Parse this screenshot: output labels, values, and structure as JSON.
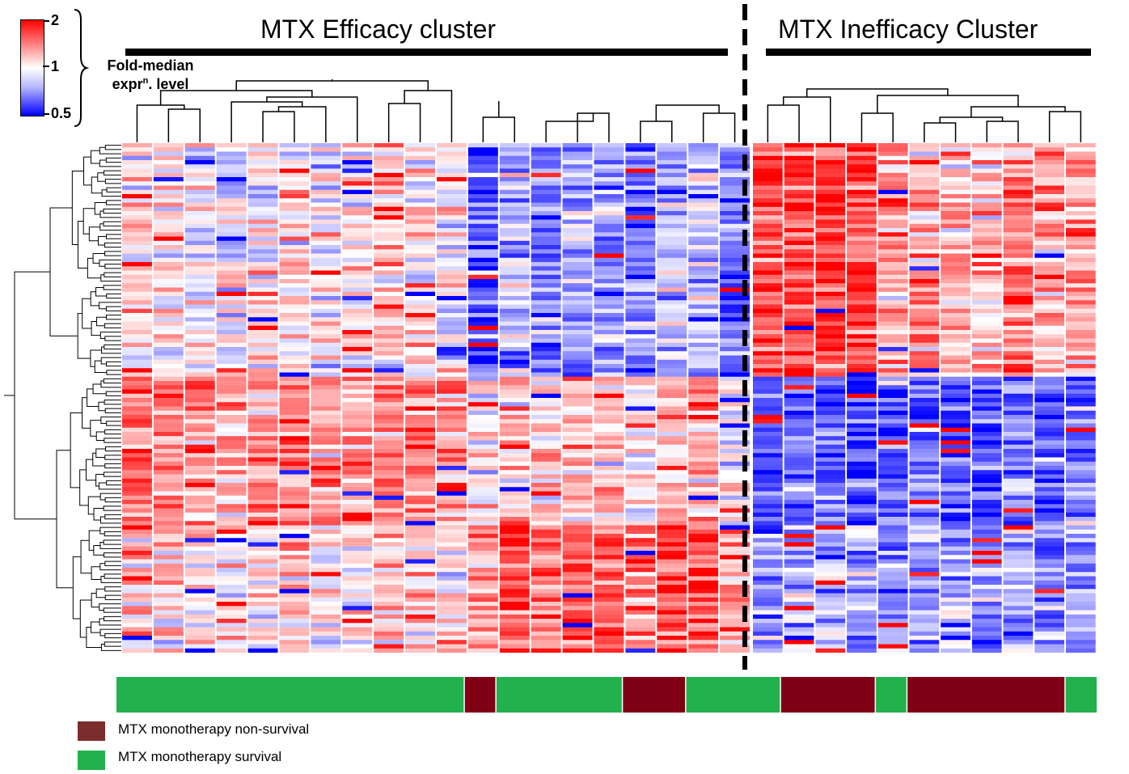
{
  "header": {
    "efficacy_title": "MTX Efficacy cluster",
    "inefficacy_title": "MTX Inefficacy Cluster"
  },
  "color_scale": {
    "tick_max": "2",
    "tick_mid": "1",
    "tick_min": "0.5",
    "label_line1": "Fold-median",
    "label_line2_main": "expr",
    "label_line2_sup": "n",
    "label_line2_rest": ". level",
    "colors": {
      "high": "#ff0000",
      "mid": "#ffffff",
      "low": "#0000ff"
    }
  },
  "legend": {
    "items": [
      {
        "label": "MTX monotherapy non-survival",
        "color": "#7b2c2c"
      },
      {
        "label": "MTX monotherapy survival",
        "color": "#22b14c"
      }
    ]
  },
  "chart_data": {
    "type": "heatmap",
    "n_columns": 31,
    "efficacy_columns": 20,
    "inefficacy_columns": 11,
    "value_range": [
      0.5,
      2
    ],
    "value_scale": "log2",
    "survival_bar": [
      {
        "status": "survival",
        "color": "#22b14c",
        "count": 11
      },
      {
        "status": "non-survival",
        "color": "#800015",
        "count": 1
      },
      {
        "status": "survival",
        "color": "#22b14c",
        "count": 4
      },
      {
        "status": "non-survival",
        "color": "#800015",
        "count": 2
      },
      {
        "status": "survival",
        "color": "#22b14c",
        "count": 3
      },
      {
        "status": "non-survival",
        "color": "#800015",
        "count": 3
      },
      {
        "status": "survival",
        "color": "#22b14c",
        "count": 1
      },
      {
        "status": "non-survival",
        "color": "#800015",
        "count": 5
      },
      {
        "status": "survival",
        "color": "#22b14c",
        "count": 1
      }
    ]
  }
}
